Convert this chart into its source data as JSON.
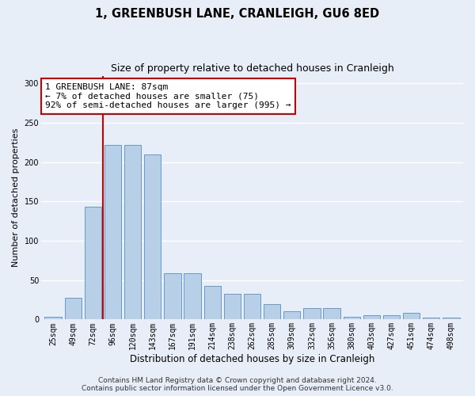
{
  "title": "1, GREENBUSH LANE, CRANLEIGH, GU6 8ED",
  "subtitle": "Size of property relative to detached houses in Cranleigh",
  "xlabel": "Distribution of detached houses by size in Cranleigh",
  "ylabel": "Number of detached properties",
  "categories": [
    "25sqm",
    "49sqm",
    "72sqm",
    "96sqm",
    "120sqm",
    "143sqm",
    "167sqm",
    "191sqm",
    "214sqm",
    "238sqm",
    "262sqm",
    "285sqm",
    "309sqm",
    "332sqm",
    "356sqm",
    "380sqm",
    "403sqm",
    "427sqm",
    "451sqm",
    "474sqm",
    "498sqm"
  ],
  "values": [
    3,
    28,
    143,
    222,
    222,
    210,
    59,
    59,
    43,
    33,
    33,
    20,
    10,
    15,
    15,
    3,
    5,
    5,
    8,
    2,
    2
  ],
  "bar_color": "#b8cfe8",
  "bar_edge_color": "#6699cc",
  "vline_x": 2.5,
  "vline_color": "#cc0000",
  "annotation_text": "1 GREENBUSH LANE: 87sqm\n← 7% of detached houses are smaller (75)\n92% of semi-detached houses are larger (995) →",
  "annotation_box_color": "#ffffff",
  "annotation_box_edge": "#cc0000",
  "ylim": [
    0,
    310
  ],
  "yticks": [
    0,
    50,
    100,
    150,
    200,
    250,
    300
  ],
  "footer_line1": "Contains HM Land Registry data © Crown copyright and database right 2024.",
  "footer_line2": "Contains public sector information licensed under the Open Government Licence v3.0.",
  "background_color": "#e8eef8",
  "grid_color": "#ffffff",
  "title_fontsize": 10.5,
  "subtitle_fontsize": 9,
  "xlabel_fontsize": 8.5,
  "ylabel_fontsize": 8,
  "tick_fontsize": 7,
  "annotation_fontsize": 8,
  "footer_fontsize": 6.5
}
